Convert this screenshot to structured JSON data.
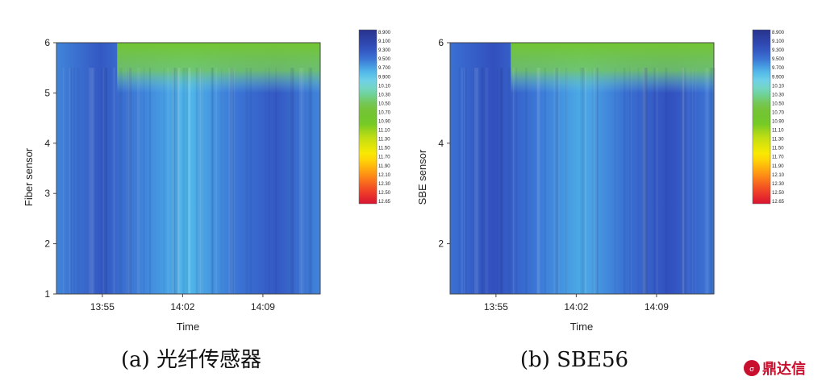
{
  "chart_data": [
    {
      "type": "heatmap",
      "panel": "a",
      "caption": "(a) 光纤传感器",
      "xlabel": "Time",
      "ylabel": "Fiber sensor",
      "x_ticks": [
        "13:55",
        "14:02",
        "14:09"
      ],
      "y_ticks": [
        1,
        2,
        3,
        4,
        5,
        6
      ],
      "ylim": [
        1,
        6
      ],
      "x_range": [
        "13:51",
        "14:14"
      ],
      "legend_placement": "right",
      "colorbar_labels": [
        "8.900",
        "9.100",
        "9.300",
        "9.500",
        "9.700",
        "9.900",
        "10.10",
        "10.30",
        "10.50",
        "10.70",
        "10.90",
        "11.10",
        "11.30",
        "11.50",
        "11.70",
        "11.90",
        "12.10",
        "12.30",
        "12.50",
        "12.65"
      ],
      "value_range": [
        8.9,
        12.65
      ],
      "time_bands": [
        9.6,
        9.35,
        9.6,
        9.8,
        9.55,
        9.35,
        9.6
      ]
    },
    {
      "type": "heatmap",
      "panel": "b",
      "caption": "(b) SBE56",
      "xlabel": "Time",
      "ylabel": "SBE sensor",
      "x_ticks": [
        "13:55",
        "14:02",
        "14:09"
      ],
      "y_ticks": [
        2,
        4,
        6
      ],
      "ylim": [
        1,
        6
      ],
      "x_range": [
        "13:51",
        "14:14"
      ],
      "legend_placement": "right",
      "colorbar_labels": [
        "8.900",
        "9.100",
        "9.300",
        "9.500",
        "9.700",
        "9.900",
        "10.10",
        "10.30",
        "10.50",
        "10.70",
        "10.90",
        "11.10",
        "11.30",
        "11.50",
        "11.70",
        "11.90",
        "12.10",
        "12.30",
        "12.50",
        "12.65"
      ],
      "value_range": [
        8.9,
        12.65
      ],
      "time_bands": [
        9.5,
        9.3,
        9.55,
        9.75,
        9.5,
        9.3,
        9.55
      ]
    }
  ],
  "watermark": "鼎达信"
}
